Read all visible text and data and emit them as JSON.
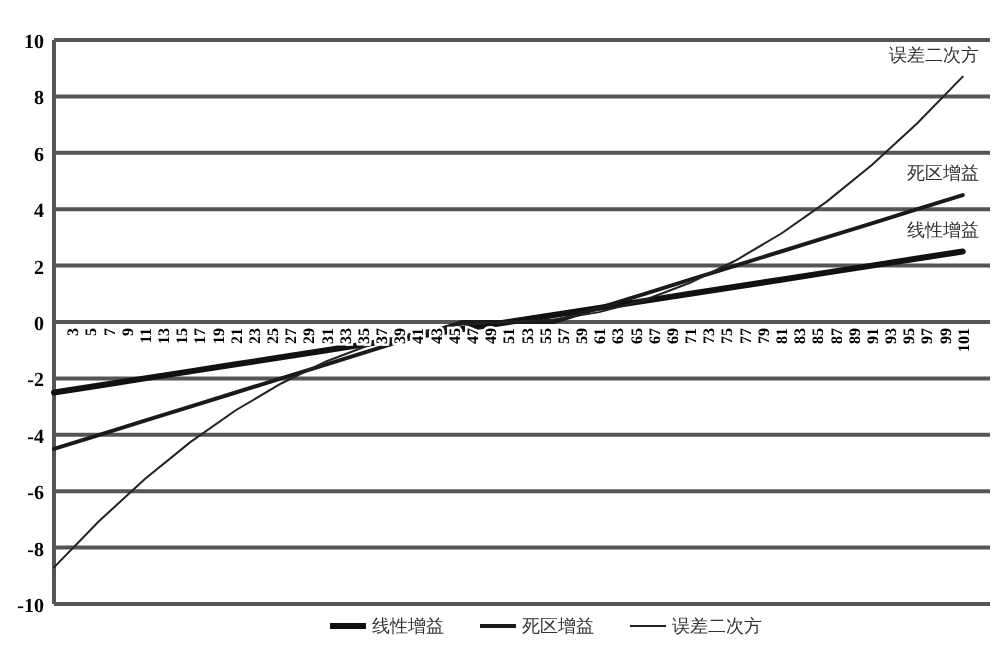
{
  "chart_data": {
    "type": "line",
    "x": [
      1,
      6,
      11,
      16,
      21,
      26,
      31,
      36,
      41,
      46,
      51,
      56,
      61,
      66,
      71,
      76,
      81,
      86,
      91,
      96,
      101
    ],
    "series": [
      {
        "name": "线性增益",
        "color": "#111111",
        "values": [
          -2.5,
          -2.25,
          -2.0,
          -1.75,
          -1.5,
          -1.25,
          -1.0,
          -0.75,
          -0.5,
          -0.25,
          0,
          0.25,
          0.5,
          0.75,
          1.0,
          1.25,
          1.5,
          1.75,
          2.0,
          2.25,
          2.5
        ]
      },
      {
        "name": "死区增益",
        "color": "#1a1a1a",
        "values": [
          -4.5,
          -4.0,
          -3.5,
          -3.0,
          -2.5,
          -2.0,
          -1.5,
          -1.0,
          -0.5,
          0,
          0,
          0,
          0.5,
          1.0,
          1.5,
          2.0,
          2.5,
          3.0,
          3.5,
          4.0,
          4.5
        ]
      },
      {
        "name": "误差二次方",
        "color": "#222222",
        "values": [
          -8.7,
          -7.05,
          -5.57,
          -4.26,
          -3.13,
          -2.18,
          -1.39,
          -0.78,
          -0.35,
          -0.09,
          0,
          0.09,
          0.35,
          0.78,
          1.39,
          2.18,
          3.13,
          4.26,
          5.57,
          7.05,
          8.7
        ]
      }
    ],
    "xlim": [
      1,
      104
    ],
    "xticks": [
      3,
      5,
      7,
      9,
      11,
      13,
      15,
      17,
      19,
      21,
      23,
      25,
      27,
      29,
      31,
      33,
      35,
      37,
      39,
      41,
      43,
      45,
      47,
      49,
      51,
      53,
      55,
      57,
      59,
      61,
      63,
      65,
      67,
      69,
      71,
      73,
      75,
      77,
      79,
      81,
      83,
      85,
      87,
      89,
      91,
      93,
      95,
      97,
      99,
      101
    ],
    "ylim": [
      -10,
      10
    ],
    "yticks": [
      -10,
      -8,
      -6,
      -4,
      -2,
      0,
      2,
      4,
      6,
      8,
      10
    ],
    "grid": "y",
    "legend": "bottom",
    "marker": "none",
    "line_style": "solid"
  }
}
